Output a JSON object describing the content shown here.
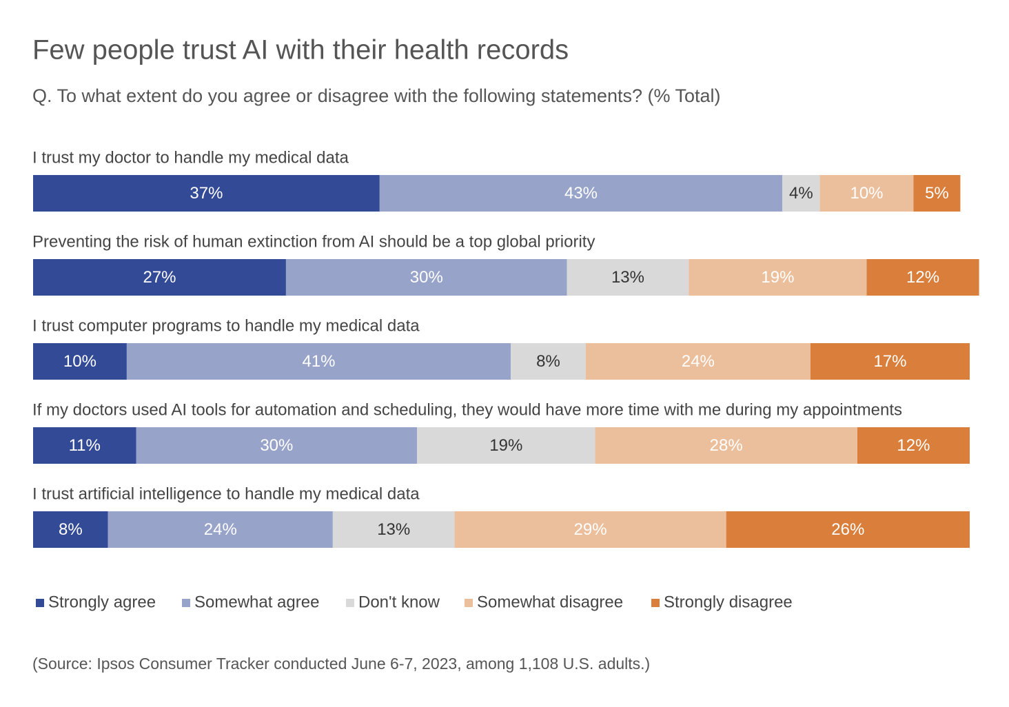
{
  "chart_data": {
    "type": "stacked-bar",
    "title": "Few people trust AI with their health records",
    "subtitle": "Q. To what extent do you agree or disagree with the following statements? (% Total)",
    "categories": [
      "I trust my doctor to handle my medical data",
      "Preventing the risk of human extinction from AI should be a top global priority",
      "I trust computer programs to handle my medical data",
      "If my doctors used AI tools for automation and scheduling, they would have more time with me during my appointments",
      "I trust artificial intelligence to handle my medical data"
    ],
    "series": [
      {
        "name": "Strongly agree",
        "color": "#334a97",
        "label_color": "#ffffff",
        "values": [
          37,
          27,
          10,
          11,
          8
        ],
        "value_labels": [
          "37%",
          "27%",
          "10%",
          "11%",
          "8%"
        ]
      },
      {
        "name": "Somewhat agree",
        "color": "#98a3c9",
        "label_color": "#ffffff",
        "values": [
          43,
          30,
          41,
          30,
          24
        ],
        "value_labels": [
          "43%",
          "30%",
          "41%",
          "30%",
          "24%"
        ]
      },
      {
        "name": "Don't know",
        "color": "#d9d9d9",
        "label_color": "#333333",
        "values": [
          4,
          13,
          8,
          19,
          13
        ],
        "value_labels": [
          "4%",
          "13%",
          "8%",
          "19%",
          "13%"
        ]
      },
      {
        "name": "Somewhat disagree",
        "color": "#ecbf9c",
        "label_color": "#ffffff",
        "values": [
          10,
          19,
          24,
          28,
          29
        ],
        "value_labels": [
          "10%",
          "19%",
          "24%",
          "28%",
          "29%"
        ]
      },
      {
        "name": "Strongly disagree",
        "color": "#d97e3b",
        "label_color": "#ffffff",
        "values": [
          5,
          12,
          17,
          12,
          26
        ],
        "value_labels": [
          "5%",
          "12%",
          "17%",
          "12%",
          "26%"
        ]
      }
    ],
    "source": "(Source: Ipsos Consumer Tracker conducted June 6-7, 2023, among 1,108 U.S. adults.)"
  }
}
